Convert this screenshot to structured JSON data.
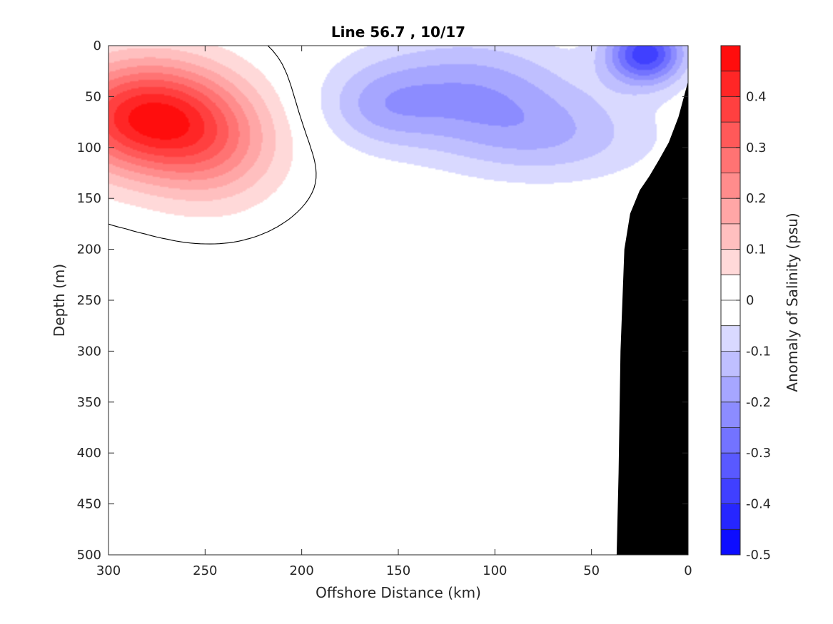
{
  "chart_data": {
    "type": "heatmap",
    "title": "Line 56.7 , 10/17",
    "xlabel": "Offshore Distance (km)",
    "ylabel": "Depth (m)",
    "colorbar_label": "Anomaly of Salinity (psu)",
    "xlim": [
      300,
      0
    ],
    "ylim": [
      500,
      0
    ],
    "x_ticks": [
      300,
      250,
      200,
      150,
      100,
      50,
      0
    ],
    "y_ticks": [
      0,
      50,
      100,
      150,
      200,
      250,
      300,
      350,
      400,
      450,
      500
    ],
    "colorbar_ticks": [
      "0.4",
      "0.3",
      "0.2",
      "0.1",
      "0",
      "-0.1",
      "-0.2",
      "-0.3",
      "-0.4",
      "-0.5"
    ],
    "colorbar_range": [
      -0.5,
      0.5
    ],
    "colorbar_levels": 20,
    "colormap": {
      "negative": "#0000ff",
      "zero": "#ffffff",
      "positive": "#ff0000"
    },
    "grid": false,
    "zero_contour": true,
    "bathymetry": {
      "color": "#000000",
      "profile": [
        [
          0,
          35
        ],
        [
          5,
          70
        ],
        [
          10,
          95
        ],
        [
          15,
          112
        ],
        [
          20,
          128
        ],
        [
          25,
          142
        ],
        [
          30,
          165
        ],
        [
          33,
          200
        ],
        [
          35,
          300
        ],
        [
          36,
          420
        ],
        [
          37,
          500
        ]
      ]
    },
    "blobs": [
      {
        "value": 0.45,
        "x": 280,
        "depth": 70,
        "sx": 45,
        "sd": 55
      },
      {
        "value": 0.15,
        "x": 245,
        "depth": 105,
        "sx": 35,
        "sd": 55
      },
      {
        "value": -0.18,
        "x": 115,
        "depth": 45,
        "sx": 55,
        "sd": 55
      },
      {
        "value": -0.1,
        "x": 160,
        "depth": 60,
        "sx": 30,
        "sd": 40
      },
      {
        "value": -0.12,
        "x": 70,
        "depth": 90,
        "sx": 55,
        "sd": 45
      },
      {
        "value": -0.38,
        "x": 22,
        "depth": 8,
        "sx": 20,
        "sd": 30
      }
    ]
  }
}
